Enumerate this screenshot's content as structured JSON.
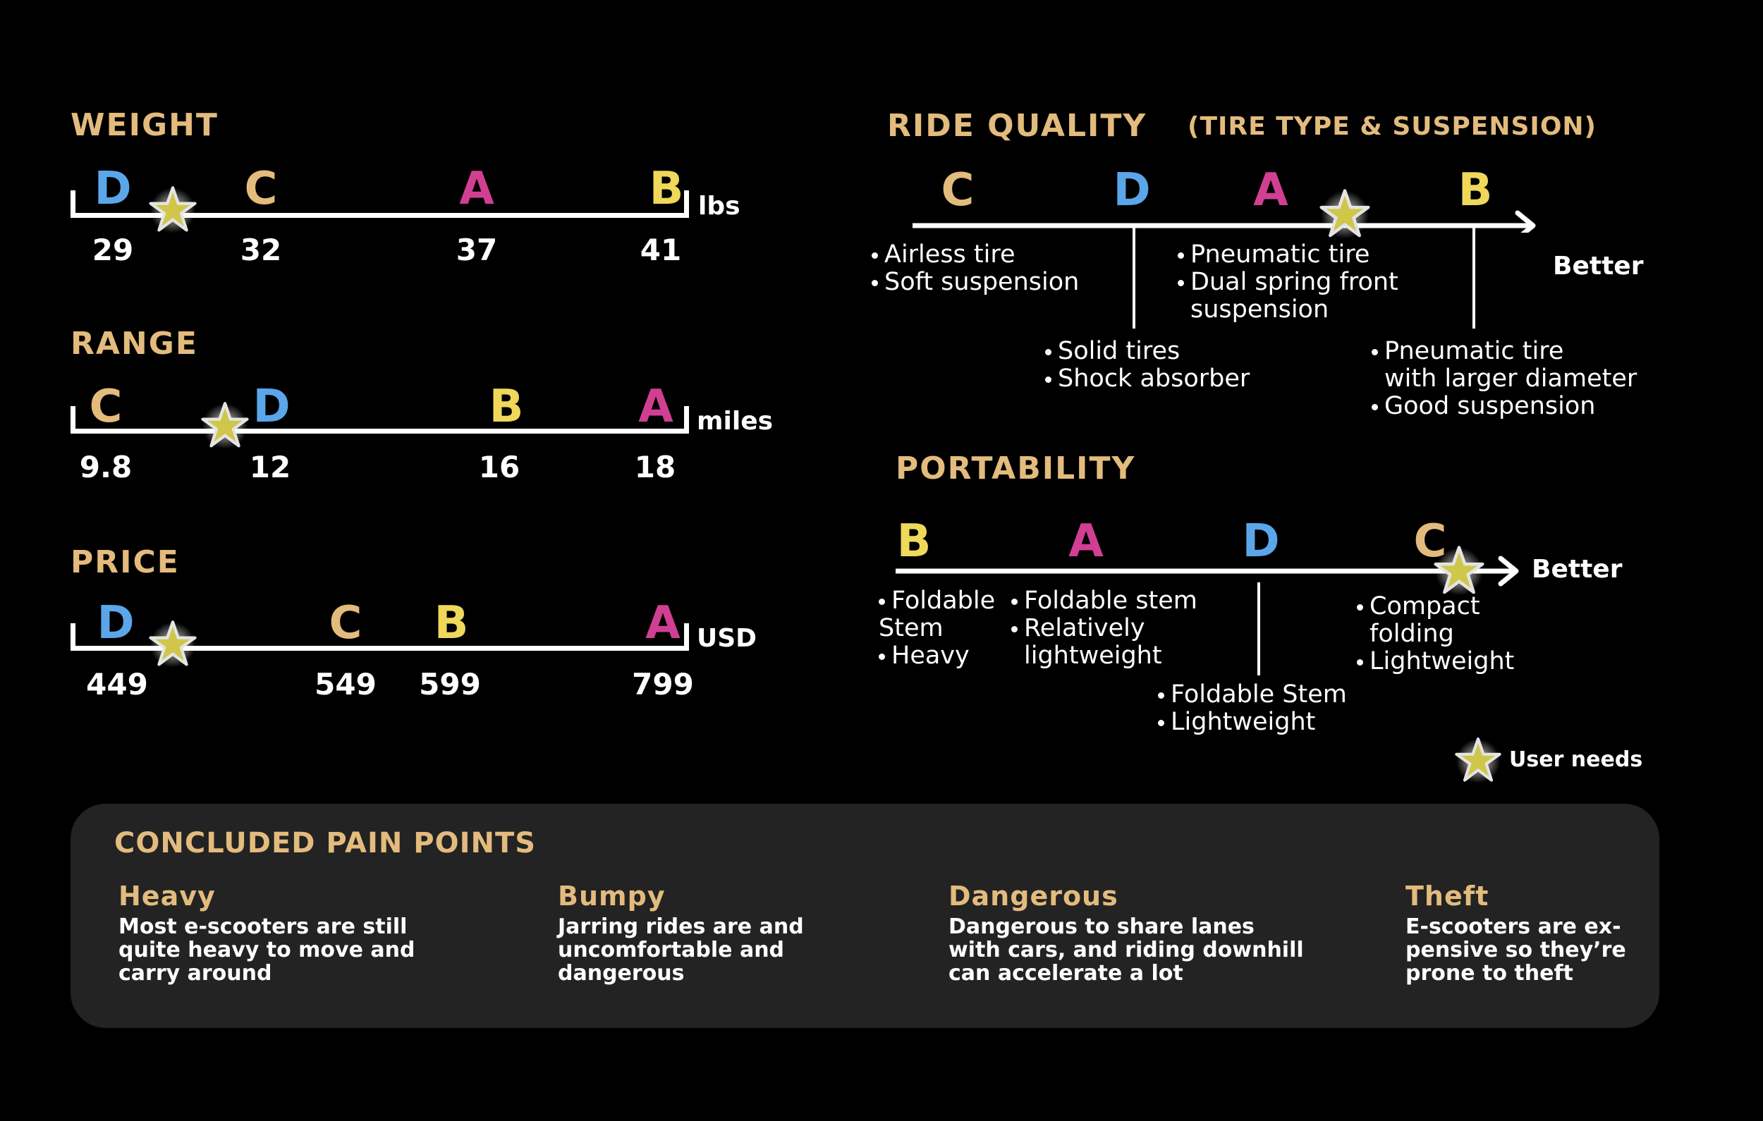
{
  "colors": {
    "A": "#d13f93",
    "B": "#efd85a",
    "C": "#e3bb7d",
    "D": "#5ba6ea",
    "title": "#e3bb7d",
    "panel": "#232323",
    "star": "#cfc64a"
  },
  "weight": {
    "title": "WEIGHT",
    "unit": "lbs",
    "items": [
      {
        "letter": "D",
        "value": "29"
      },
      {
        "letter": "C",
        "value": "32"
      },
      {
        "letter": "A",
        "value": "37"
      },
      {
        "letter": "B",
        "value": "41"
      }
    ]
  },
  "range": {
    "title": "RANGE",
    "unit": "miles",
    "items": [
      {
        "letter": "C",
        "value": "9.8"
      },
      {
        "letter": "D",
        "value": "12"
      },
      {
        "letter": "B",
        "value": "16"
      },
      {
        "letter": "A",
        "value": "18"
      }
    ]
  },
  "price": {
    "title": "PRICE",
    "unit": "USD",
    "items": [
      {
        "letter": "D",
        "value": "449"
      },
      {
        "letter": "C",
        "value": "549"
      },
      {
        "letter": "B",
        "value": "599"
      },
      {
        "letter": "A",
        "value": "799"
      }
    ]
  },
  "ride_quality": {
    "title": "RIDE QUALITY",
    "subtitle": "(TIRE TYPE & SUSPENSION)",
    "better": "Better",
    "letters": [
      "C",
      "D",
      "A",
      "B"
    ],
    "notes": {
      "c": [
        "Airless tire",
        "Soft suspension"
      ],
      "d": [
        "Solid tires",
        "Shock absorber"
      ],
      "a": [
        "Pneumatic tire",
        "Dual spring front",
        "suspension"
      ],
      "b": [
        "Pneumatic tire",
        "with larger diameter",
        "Good suspension"
      ]
    }
  },
  "portability": {
    "title": "PORTABILITY",
    "better": "Better",
    "letters": [
      "B",
      "A",
      "D",
      "C"
    ],
    "notes": {
      "b": [
        "Foldable",
        "Stem",
        "Heavy"
      ],
      "a": [
        "Foldable stem",
        "Relatively",
        "lightweight"
      ],
      "d": [
        "Foldable Stem",
        "Lightweight"
      ],
      "c": [
        "Compact",
        "folding",
        "Lightweight"
      ]
    }
  },
  "legend": {
    "label": "User needs",
    "icon": "star-icon"
  },
  "pain_points": {
    "title": "CONCLUDED PAIN POINTS",
    "items": [
      {
        "title": "Heavy",
        "lines": [
          "Most e-scooters are still",
          "quite heavy to move and",
          "carry around"
        ]
      },
      {
        "title": "Bumpy",
        "lines": [
          "Jarring rides are and",
          "uncomfortable and",
          "dangerous"
        ]
      },
      {
        "title": "Dangerous",
        "lines": [
          "Dangerous to share lanes",
          "with cars, and riding downhill",
          "can accelerate a lot"
        ]
      },
      {
        "title": "Theft",
        "lines": [
          "E-scooters are ex-",
          "pensive so they’re",
          "prone to theft"
        ]
      }
    ]
  }
}
